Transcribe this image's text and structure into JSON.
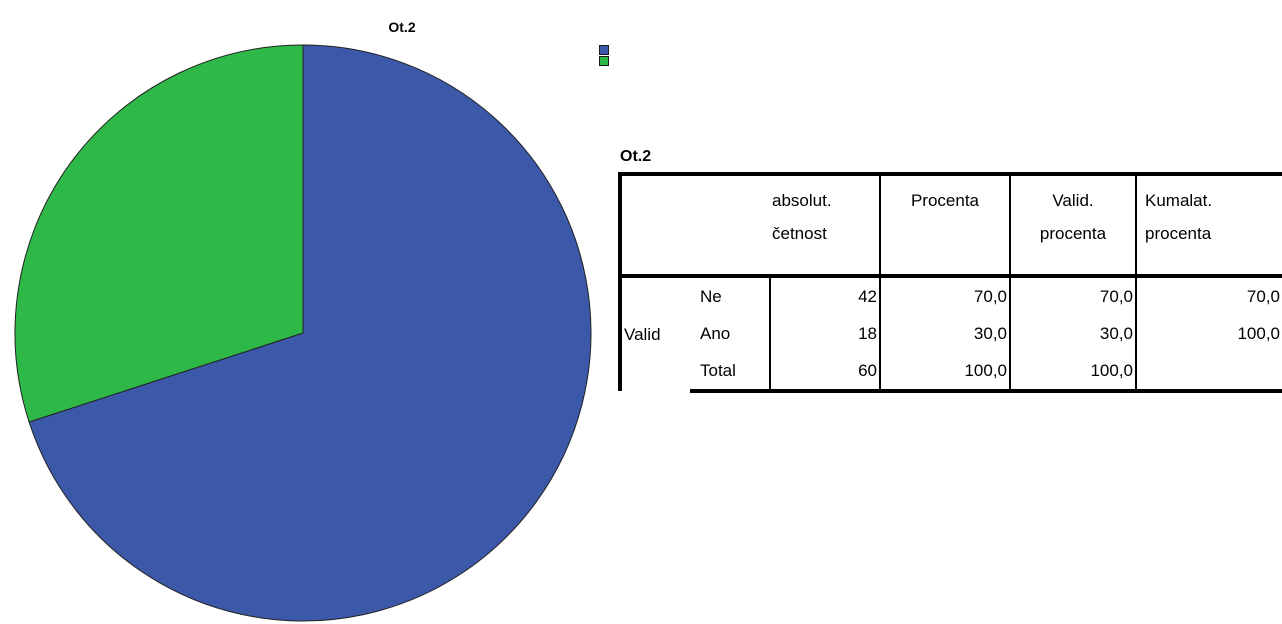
{
  "chart_data": {
    "type": "pie",
    "title": "Ot.2",
    "categories": [
      "Ne",
      "Ano"
    ],
    "values": [
      42,
      18
    ],
    "colors": [
      "#3c58a9",
      "#2eb847"
    ],
    "legend_position": "top-right",
    "start": "12 o'clock",
    "direction": "clockwise"
  },
  "table": {
    "title": "Ot.2",
    "headers": [
      "absolut. četnost",
      "Procenta",
      "Valid. procenta",
      "Kumalat. procenta"
    ],
    "header_lines": [
      [
        "absolut.",
        "četnost"
      ],
      [
        "Procenta"
      ],
      [
        "Valid.",
        "procenta"
      ],
      [
        "Kumalat.",
        "procenta"
      ]
    ],
    "group_label": "Valid",
    "rows": [
      {
        "label": "Ne",
        "count": "42",
        "percent": "70,0",
        "valid_percent": "70,0",
        "cumulative_percent": "70,0"
      },
      {
        "label": "Ano",
        "count": "18",
        "percent": "30,0",
        "valid_percent": "30,0",
        "cumulative_percent": "100,0"
      },
      {
        "label": "Total",
        "count": "60",
        "percent": "100,0",
        "valid_percent": "100,0",
        "cumulative_percent": ""
      }
    ]
  }
}
